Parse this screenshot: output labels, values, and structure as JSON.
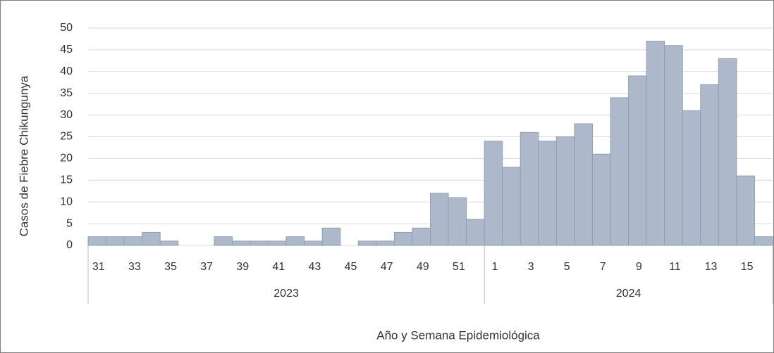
{
  "chart_data": {
    "type": "bar",
    "ylabel": "Casos de Fiebre Chikungunya",
    "xlabel": "Año y Semana Epidemiológica",
    "color": "#adb9ca",
    "ylim": [
      0,
      50
    ],
    "yticks": [
      0,
      5,
      10,
      15,
      20,
      25,
      30,
      35,
      40,
      45,
      50
    ],
    "grid": true,
    "groups": [
      {
        "name": "2023",
        "categories": [
          31,
          null,
          33,
          null,
          35,
          null,
          37,
          null,
          39,
          null,
          41,
          null,
          43,
          null,
          45,
          null,
          47,
          null,
          49,
          null,
          51,
          null
        ],
        "values": [
          2,
          2,
          2,
          3,
          1,
          0,
          0,
          2,
          1,
          1,
          1,
          2,
          1,
          4,
          0,
          1,
          1,
          3,
          4,
          12,
          11,
          6
        ]
      },
      {
        "name": "2024",
        "categories": [
          1,
          null,
          3,
          null,
          5,
          null,
          7,
          null,
          9,
          null,
          11,
          null,
          13,
          null,
          15,
          null
        ],
        "values": [
          24,
          18,
          26,
          24,
          25,
          28,
          21,
          34,
          39,
          47,
          46,
          31,
          37,
          43,
          16,
          2
        ]
      }
    ]
  }
}
